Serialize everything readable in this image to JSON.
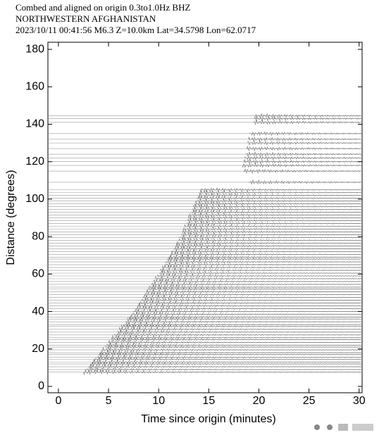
{
  "chart_data": {
    "type": "record_section",
    "title_lines": [
      "Combed and aligned on origin  0.3to1.0Hz  BHZ",
      "NORTHWESTERN AFGHANISTAN",
      "2023/10/11  00:41:56  M6.3  Z=10.0km Lat=34.5798 Lon=62.0717"
    ],
    "x_label": "Time since origin (minutes)",
    "y_label": "Distance (degrees)",
    "xlim": [
      -1.05,
      30.3
    ],
    "ylim": [
      -3.4,
      183.8
    ],
    "xticks": [
      0,
      5,
      10,
      15,
      20,
      25,
      30
    ],
    "yticks": [
      0,
      20,
      40,
      60,
      80,
      100,
      120,
      140,
      160,
      180
    ],
    "color": "#555555",
    "distances": [
      7.6,
      9,
      10.5,
      12,
      13,
      14.5,
      15.5,
      17,
      18,
      19.5,
      21,
      22,
      23.5,
      25,
      26,
      27.5,
      29,
      30.5,
      32,
      33,
      34.5,
      36,
      37,
      38.5,
      40,
      41.5,
      43,
      44.5,
      46,
      47.5,
      49,
      50.5,
      52,
      53,
      54.5,
      56,
      57.5,
      59,
      60.5,
      62,
      63.5,
      65,
      66.5,
      68,
      69,
      70.5,
      72,
      73.5,
      75,
      76.5,
      78,
      79.5,
      81,
      82.5,
      84,
      85.5,
      87,
      88.5,
      90,
      91.5,
      93,
      94.5,
      96,
      97.5,
      99,
      100.5,
      102,
      103.5,
      105,
      109,
      115,
      118,
      120,
      122,
      124,
      127,
      130,
      132,
      135,
      141,
      143,
      144.5
    ],
    "arrivals": [
      2.5,
      2.7,
      3.0,
      3.2,
      3.4,
      3.6,
      3.8,
      4.0,
      4.2,
      4.4,
      4.7,
      4.8,
      5.0,
      5.3,
      5.4,
      5.6,
      5.9,
      6.1,
      6.3,
      6.5,
      6.7,
      6.9,
      7.1,
      7.3,
      7.5,
      7.7,
      7.9,
      8.1,
      8.3,
      8.4,
      8.6,
      8.8,
      9.0,
      9.1,
      9.3,
      9.5,
      9.7,
      9.9,
      10.1,
      10.2,
      10.4,
      10.6,
      10.7,
      10.9,
      11.0,
      11.2,
      11.3,
      11.5,
      11.7,
      11.8,
      12.0,
      12.1,
      12.3,
      12.4,
      12.5,
      12.6,
      12.8,
      12.9,
      13.0,
      13.1,
      13.2,
      13.4,
      13.5,
      13.6,
      13.7,
      13.8,
      14.0,
      14.1,
      14.2,
      19.0,
      18.5,
      18.4,
      18.5,
      18.6,
      18.7,
      18.8,
      18.9,
      19.0,
      19.1,
      19.5,
      19.6,
      19.7
    ]
  }
}
